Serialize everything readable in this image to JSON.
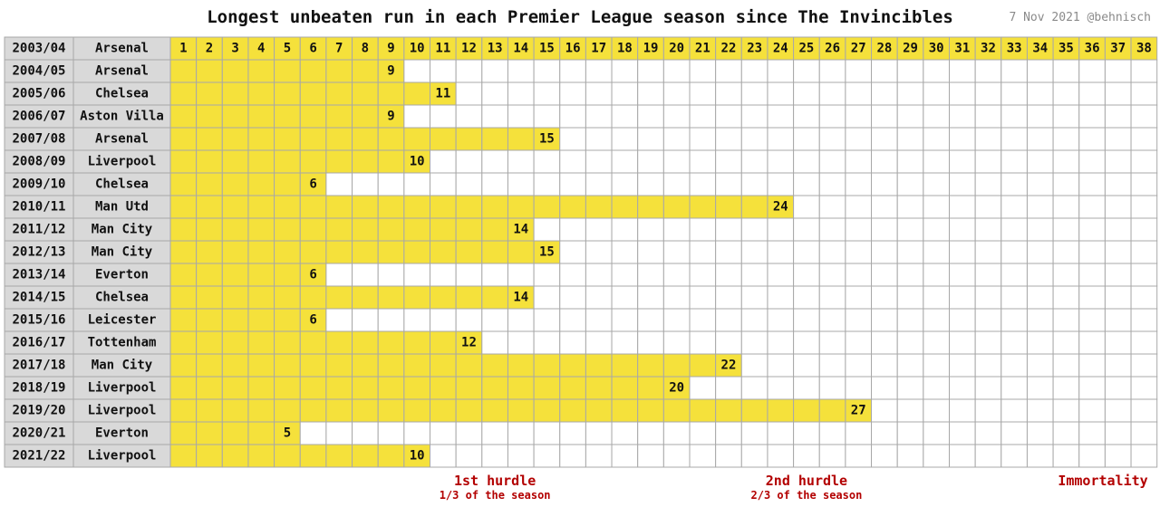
{
  "title": "Longest unbeaten run in each Premier League season since The Invincibles",
  "credit": "7 Nov 2021 @behnisch",
  "colors": {
    "run": "#f5e13b",
    "label_bg": "#d9d9d9",
    "empty": "#ffffff",
    "grid": "#a8a8a8",
    "hurdle": "#b30000"
  },
  "chart_data": {
    "type": "table",
    "title": "Longest unbeaten run in each Premier League season since The Invincibles",
    "matches": [
      1,
      2,
      3,
      4,
      5,
      6,
      7,
      8,
      9,
      10,
      11,
      12,
      13,
      14,
      15,
      16,
      17,
      18,
      19,
      20,
      21,
      22,
      23,
      24,
      25,
      26,
      27,
      28,
      29,
      30,
      31,
      32,
      33,
      34,
      35,
      36,
      37,
      38
    ],
    "rows": [
      {
        "season": "2003/04",
        "team": "Arsenal",
        "run": 38
      },
      {
        "season": "2004/05",
        "team": "Arsenal",
        "run": 9
      },
      {
        "season": "2005/06",
        "team": "Chelsea",
        "run": 11
      },
      {
        "season": "2006/07",
        "team": "Aston Villa",
        "run": 9
      },
      {
        "season": "2007/08",
        "team": "Arsenal",
        "run": 15
      },
      {
        "season": "2008/09",
        "team": "Liverpool",
        "run": 10
      },
      {
        "season": "2009/10",
        "team": "Chelsea",
        "run": 6
      },
      {
        "season": "2010/11",
        "team": "Man Utd",
        "run": 24
      },
      {
        "season": "2011/12",
        "team": "Man City",
        "run": 14
      },
      {
        "season": "2012/13",
        "team": "Man City",
        "run": 15
      },
      {
        "season": "2013/14",
        "team": "Everton",
        "run": 6
      },
      {
        "season": "2014/15",
        "team": "Chelsea",
        "run": 14
      },
      {
        "season": "2015/16",
        "team": "Leicester",
        "run": 6
      },
      {
        "season": "2016/17",
        "team": "Tottenham",
        "run": 12
      },
      {
        "season": "2017/18",
        "team": "Man City",
        "run": 22
      },
      {
        "season": "2018/19",
        "team": "Liverpool",
        "run": 20
      },
      {
        "season": "2019/20",
        "team": "Liverpool",
        "run": 27
      },
      {
        "season": "2020/21",
        "team": "Everton",
        "run": 5
      },
      {
        "season": "2021/22",
        "team": "Liverpool",
        "run": 10
      }
    ],
    "annotations": [
      {
        "title": "1st hurdle",
        "subtitle": "1/3 of the season",
        "at_match": 13
      },
      {
        "title": "2nd hurdle",
        "subtitle": "2/3 of the season",
        "at_match": 25
      },
      {
        "title": "Immortality",
        "subtitle": "",
        "at_match": 38
      }
    ]
  }
}
